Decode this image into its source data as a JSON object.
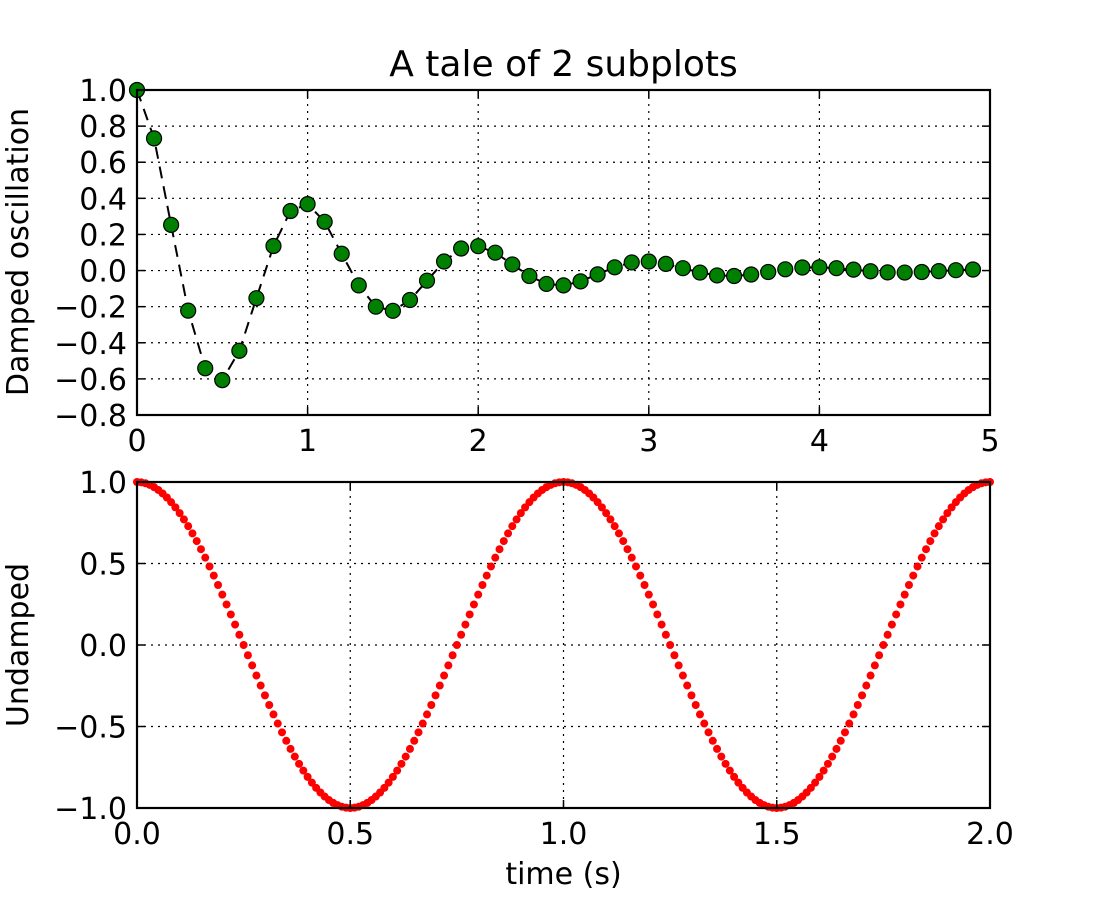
{
  "chart_data": [
    {
      "type": "line",
      "title": "A tale of 2 subplots",
      "xlabel": "",
      "ylabel": "Damped oscillation",
      "xlim": [
        0,
        5
      ],
      "ylim": [
        -0.8,
        1.0
      ],
      "xticks": [
        0,
        1,
        2,
        3,
        4,
        5
      ],
      "xtick_labels": [
        "0",
        "1",
        "2",
        "3",
        "4",
        "5"
      ],
      "yticks": [
        1.0,
        0.8,
        0.6,
        0.4,
        0.2,
        0.0,
        -0.2,
        -0.4,
        -0.6,
        -0.8
      ],
      "ytick_labels": [
        "1.0",
        "0.8",
        "0.6",
        "0.4",
        "0.2",
        "0.0",
        "−0.2",
        "−0.4",
        "−0.6",
        "−0.8"
      ],
      "grid": true,
      "series": [
        {
          "color": "#008000",
          "marker": "circle",
          "linestyle": "dashed",
          "line_color": "#000000",
          "x": [
            0.0,
            0.1,
            0.2,
            0.3,
            0.4,
            0.5,
            0.6,
            0.7,
            0.8,
            0.9,
            1.0,
            1.1,
            1.2,
            1.3,
            1.4,
            1.5,
            1.6,
            1.7,
            1.8,
            1.9,
            2.0,
            2.1,
            2.2,
            2.3,
            2.4,
            2.5,
            2.6,
            2.7,
            2.8,
            2.9,
            3.0,
            3.1,
            3.2,
            3.3,
            3.4,
            3.5,
            3.6,
            3.7,
            3.8,
            3.9,
            4.0,
            4.1,
            4.2,
            4.3,
            4.4,
            4.5,
            4.6,
            4.7,
            4.8,
            4.9
          ],
          "y": [
            1.0,
            0.732,
            0.253,
            -0.222,
            -0.541,
            -0.607,
            -0.444,
            -0.153,
            0.136,
            0.33,
            0.368,
            0.27,
            0.093,
            -0.082,
            -0.2,
            -0.223,
            -0.163,
            -0.056,
            0.05,
            0.122,
            0.135,
            0.099,
            0.034,
            -0.03,
            -0.074,
            -0.082,
            -0.06,
            -0.021,
            0.018,
            0.045,
            0.05,
            0.037,
            0.013,
            -0.011,
            -0.027,
            -0.03,
            -0.022,
            -0.008,
            0.007,
            0.017,
            0.018,
            0.013,
            0.005,
            -0.004,
            -0.01,
            -0.011,
            -0.008,
            -0.003,
            0.002,
            0.006
          ]
        }
      ]
    },
    {
      "type": "scatter",
      "title": "",
      "xlabel": "time (s)",
      "ylabel": "Undamped",
      "xlim": [
        0.0,
        2.0
      ],
      "ylim": [
        -1.0,
        1.0
      ],
      "xticks": [
        0.0,
        0.5,
        1.0,
        1.5,
        2.0
      ],
      "xtick_labels": [
        "0.0",
        "0.5",
        "1.0",
        "1.5",
        "2.0"
      ],
      "yticks": [
        1.0,
        0.5,
        0.0,
        -0.5,
        -1.0
      ],
      "ytick_labels": [
        "1.0",
        "0.5",
        "0.0",
        "−0.5",
        "−1.0"
      ],
      "grid": true,
      "series": [
        {
          "color": "#ff0000",
          "marker": "circle",
          "function": "cos(2*pi*t)",
          "x_start": 0.0,
          "x_end": 2.0,
          "x_step": 0.01
        }
      ]
    }
  ]
}
